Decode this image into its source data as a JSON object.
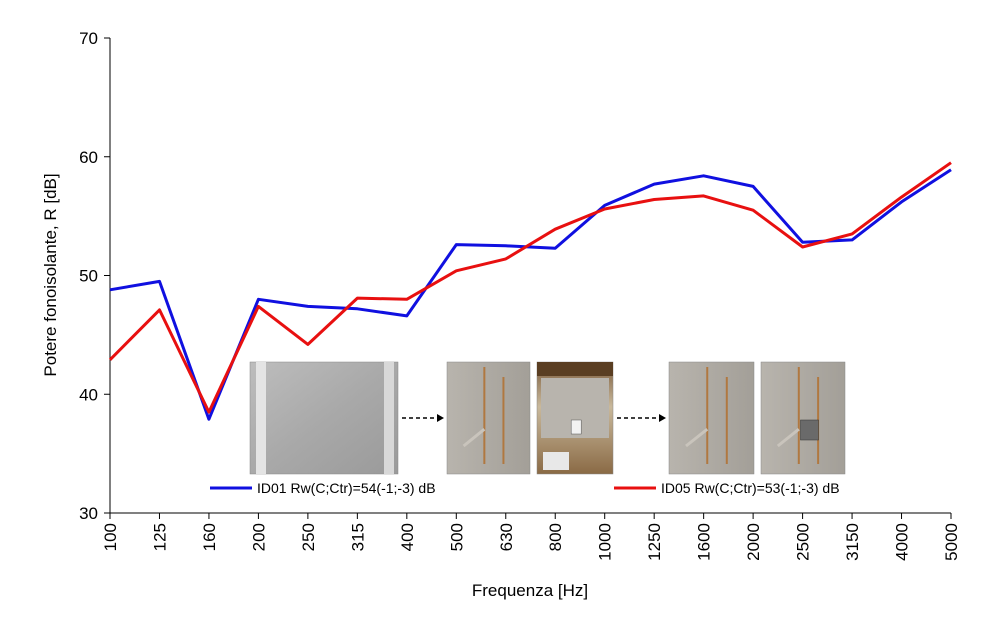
{
  "chart_data": {
    "type": "line",
    "title": "",
    "xlabel": "Frequenza [Hz]",
    "ylabel": "Potere fonoisolante, R [dB]",
    "ylim": [
      30,
      70
    ],
    "yticks": [
      30,
      40,
      50,
      60,
      70
    ],
    "grid": false,
    "categories": [
      "100",
      "125",
      "160",
      "200",
      "250",
      "315",
      "400",
      "500",
      "630",
      "800",
      "1000",
      "1250",
      "1600",
      "2000",
      "2500",
      "3150",
      "4000",
      "5000"
    ],
    "series": [
      {
        "name": "ID01 Rw(C;Ctr)=54(-1;-3) dB",
        "color": "#1010e0",
        "values": [
          48.8,
          49.5,
          37.9,
          48.0,
          47.4,
          47.2,
          46.6,
          52.6,
          52.5,
          52.3,
          55.9,
          57.7,
          58.4,
          57.5,
          52.8,
          53.0,
          56.2,
          58.9
        ]
      },
      {
        "name": "ID05 Rw(C;Ctr)=53(-1;-3) dB",
        "color": "#e81010",
        "values": [
          42.9,
          47.1,
          38.5,
          47.4,
          44.2,
          48.1,
          48.0,
          50.4,
          51.4,
          53.9,
          55.6,
          56.4,
          56.7,
          55.5,
          52.4,
          53.5,
          56.6,
          59.5
        ]
      }
    ],
    "legend_placement": "bottom-inside"
  },
  "photos": [
    {
      "name": "photo-bare-wall",
      "arrow_after": true
    },
    {
      "name": "photo-wall-with-conduits",
      "arrow_after": false
    },
    {
      "name": "photo-wall-installation",
      "arrow_after": true
    },
    {
      "name": "photo-wall-plaster-patches",
      "arrow_after": false
    },
    {
      "name": "photo-wall-with-box",
      "arrow_after": false
    }
  ]
}
